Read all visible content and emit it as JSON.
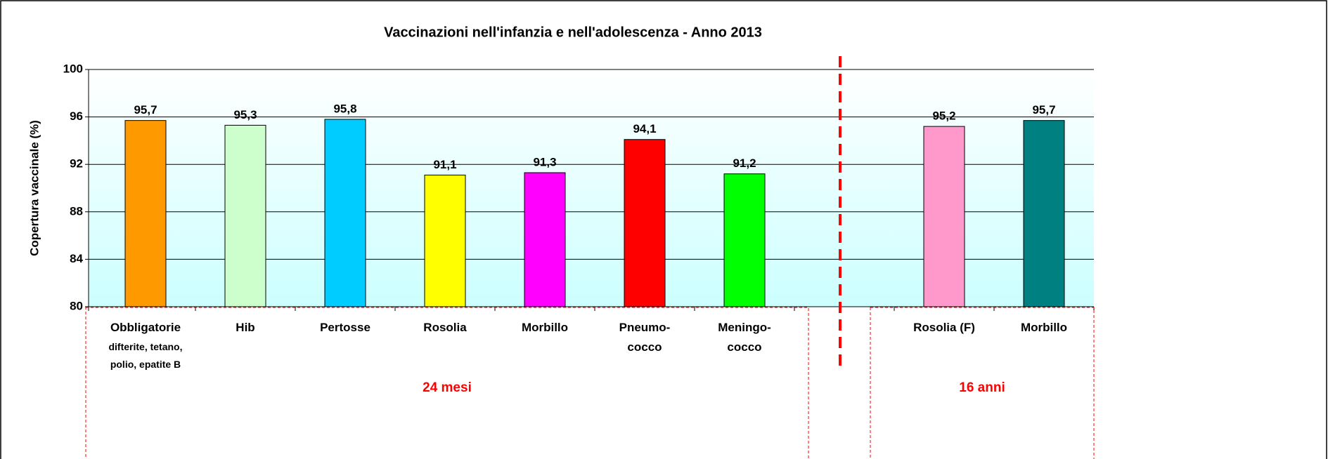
{
  "chart_data": {
    "type": "bar",
    "title": "Vaccinazioni nell'infanzia e nell'adolescenza - Anno 2013",
    "y_label": "Copertura vaccinale (%)",
    "categories": [
      "Obbligatorie",
      "Hib",
      "Pertosse",
      "Rosolia",
      "Morbillo",
      "Pneumo-\ncocco",
      "Meningo-\ncocco",
      null,
      "Rosolia (F)",
      "Morbillo"
    ],
    "values": [
      95.7,
      95.3,
      95.8,
      91.1,
      91.3,
      94.1,
      91.2,
      null,
      95.2,
      95.7
    ],
    "value_labels": [
      "95,7",
      "95,3",
      "95,8",
      "91,1",
      "91,3",
      "94,1",
      "91,2",
      null,
      "95,2",
      "95,7"
    ],
    "colors": [
      "#ff9900",
      "#ccffcc",
      "#00ccff",
      "#ffff00",
      "#ff00ff",
      "#ff0000",
      "#00ff00",
      null,
      "#ff99cc",
      "#008080"
    ],
    "annotations": [
      "difterite, tetano,\npolio, epatite B"
    ],
    "groups": [
      {
        "label": "24 mesi"
      },
      {
        "label": "16 anni"
      }
    ],
    "ylim": [
      80,
      100
    ],
    "yticks": [
      80,
      84,
      88,
      92,
      96,
      100
    ],
    "grid": true
  }
}
